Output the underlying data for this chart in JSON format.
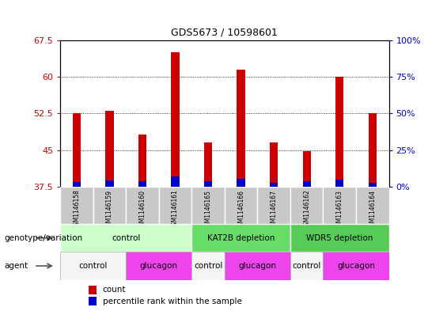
{
  "title": "GDS5673 / 10598601",
  "samples": [
    "GSM1146158",
    "GSM1146159",
    "GSM1146160",
    "GSM1146161",
    "GSM1146165",
    "GSM1146166",
    "GSM1146167",
    "GSM1146162",
    "GSM1146163",
    "GSM1146164"
  ],
  "count_values": [
    52.5,
    53.0,
    48.2,
    65.0,
    46.5,
    61.5,
    46.5,
    44.8,
    60.0,
    52.5
  ],
  "percentile_values": [
    3.0,
    4.0,
    3.5,
    7.0,
    3.5,
    5.5,
    2.5,
    3.5,
    4.5,
    2.5
  ],
  "bar_bottom": 37.5,
  "ylim_left": [
    37.5,
    67.5
  ],
  "ylim_right": [
    0,
    100
  ],
  "yticks_left": [
    37.5,
    45.0,
    52.5,
    60.0,
    67.5
  ],
  "ytick_labels_left": [
    "37.5",
    "45",
    "52.5",
    "60",
    "67.5"
  ],
  "yticks_right": [
    0,
    25,
    50,
    75,
    100
  ],
  "ytick_labels_right": [
    "0%",
    "25%",
    "50%",
    "75%",
    "100%"
  ],
  "count_color": "#cc0000",
  "percentile_color": "#0000cc",
  "red_bar_width": 0.25,
  "blue_bar_width": 0.25,
  "grid_color": "#000000",
  "left_tick_color": "#cc0000",
  "right_tick_color": "#0000cc",
  "plot_bg_color": "#ffffff",
  "sample_bg_color": "#c8c8c8",
  "genotype_groups": [
    {
      "label": "control",
      "start": 0,
      "end": 4,
      "color": "#ccffcc"
    },
    {
      "label": "KAT2B depletion",
      "start": 4,
      "end": 7,
      "color": "#66dd66"
    },
    {
      "label": "WDR5 depletion",
      "start": 7,
      "end": 10,
      "color": "#55cc55"
    }
  ],
  "agent_groups": [
    {
      "label": "control",
      "start": 0,
      "end": 2,
      "color": "#f5f5f5"
    },
    {
      "label": "glucagon",
      "start": 2,
      "end": 4,
      "color": "#ee44ee"
    },
    {
      "label": "control",
      "start": 4,
      "end": 5,
      "color": "#f5f5f5"
    },
    {
      "label": "glucagon",
      "start": 5,
      "end": 7,
      "color": "#ee44ee"
    },
    {
      "label": "control",
      "start": 7,
      "end": 8,
      "color": "#f5f5f5"
    },
    {
      "label": "glucagon",
      "start": 8,
      "end": 10,
      "color": "#ee44ee"
    }
  ],
  "legend_items": [
    {
      "label": "count",
      "color": "#cc0000"
    },
    {
      "label": "percentile rank within the sample",
      "color": "#0000cc"
    }
  ],
  "xlabel_genotype": "genotype/variation",
  "xlabel_agent": "agent",
  "n_samples": 10
}
